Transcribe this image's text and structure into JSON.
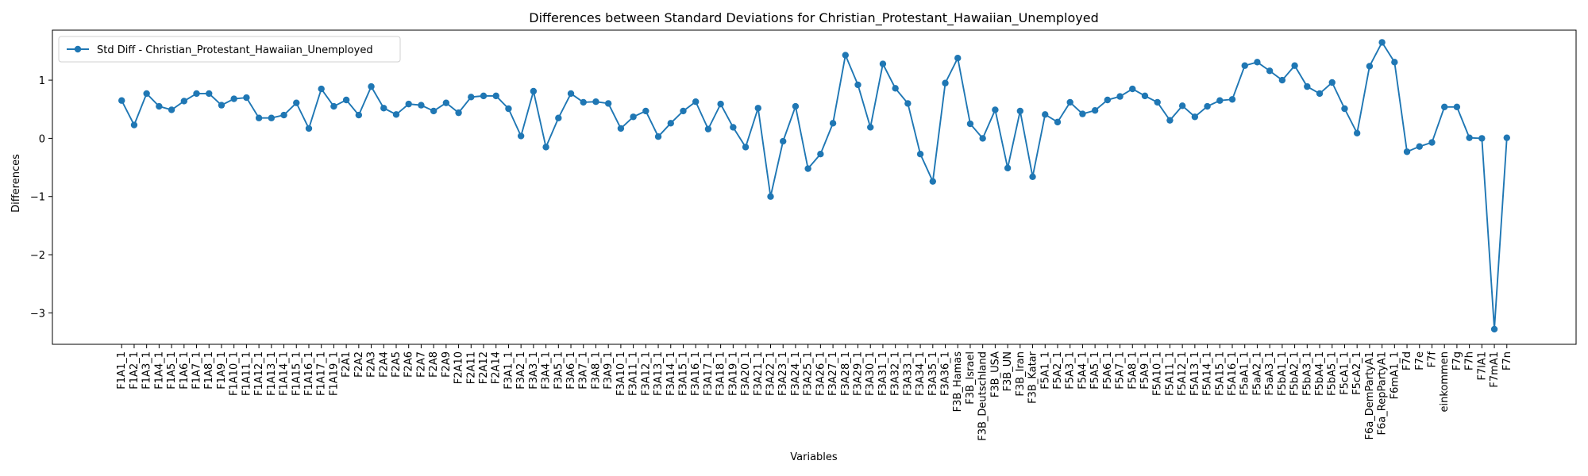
{
  "chart_data": {
    "type": "line",
    "title": "Differences between Standard Deviations for Christian_Protestant_Hawaiian_Unemployed",
    "x_label": "Variables",
    "y_label": "Differences",
    "categories": [
      "F1A1_1",
      "F1A2_1",
      "F1A3_1",
      "F1A4_1",
      "F1A5_1",
      "F1A6_1",
      "F1A7_1",
      "F1A8_1",
      "F1A9_1",
      "F1A10_1",
      "F1A11_1",
      "F1A12_1",
      "F1A13_1",
      "F1A14_1",
      "F1A15_1",
      "F1A16_1",
      "F1A17_1",
      "F1A19_1",
      "F2A1",
      "F2A2",
      "F2A3",
      "F2A4",
      "F2A5",
      "F2A6",
      "F2A7",
      "F2A8",
      "F2A9",
      "F2A10",
      "F2A11",
      "F2A12",
      "F2A14",
      "F3A1_1",
      "F3A2_1",
      "F3A3_1",
      "F3A4_1",
      "F3A5_1",
      "F3A6_1",
      "F3A7_1",
      "F3A8_1",
      "F3A9_1",
      "F3A10_1",
      "F3A11_1",
      "F3A12_1",
      "F3A13_1",
      "F3A14_1",
      "F3A15_1",
      "F3A16_1",
      "F3A17_1",
      "F3A18_1",
      "F3A19_1",
      "F3A20_1",
      "F3A21_1",
      "F3A22_1",
      "F3A23_1",
      "F3A24_1",
      "F3A25_1",
      "F3A26_1",
      "F3A27_1",
      "F3A28_1",
      "F3A29_1",
      "F3A30_1",
      "F3A31_1",
      "F3A32_1",
      "F3A33_1",
      "F3A34_1",
      "F3A35_1",
      "F3A36_1",
      "F3B_Hamas",
      "F3B_Israel",
      "F3B_Deutschland",
      "F3B_USA",
      "F3B_UN",
      "F3B_Iran",
      "F3B_Katar",
      "F5A1_1",
      "F5A2_1",
      "F5A3_1",
      "F5A4_1",
      "F5A5_1",
      "F5A6_1",
      "F5A7_1",
      "F5A8_1",
      "F5A9_1",
      "F5A10_1",
      "F5A11_1",
      "F5A12_1",
      "F5A13_1",
      "F5A14_1",
      "F5A15_1",
      "F5A16_1",
      "F5aA1_1",
      "F5aA2_1",
      "F5aA3_1",
      "F5bA1_1",
      "F5bA2_1",
      "F5bA3_1",
      "F5bA4_1",
      "F5bA5_1",
      "F5cA1_1",
      "F5cA2_1",
      "F6a_DemPartyA1",
      "F6a_RepPartyA1",
      "F6mA1_1",
      "F7d",
      "F7e",
      "F7f",
      "einkommen",
      "F7g",
      "F7h",
      "F7lA1",
      "F7mA1",
      "F7n"
    ],
    "series": [
      {
        "name": "Std Diff - Christian_Protestant_Hawaiian_Unemployed",
        "color": "#1f77b4",
        "values": [
          0.65,
          0.23,
          0.77,
          0.55,
          0.49,
          0.64,
          0.77,
          0.77,
          0.57,
          0.68,
          0.7,
          0.35,
          0.35,
          0.4,
          0.61,
          0.17,
          0.85,
          0.55,
          0.66,
          0.4,
          0.89,
          0.52,
          0.41,
          0.59,
          0.57,
          0.47,
          0.61,
          0.44,
          0.71,
          0.73,
          0.73,
          0.51,
          0.04,
          0.81,
          -0.15,
          0.35,
          0.77,
          0.62,
          0.63,
          0.6,
          0.17,
          0.37,
          0.47,
          0.03,
          0.26,
          0.47,
          0.63,
          0.16,
          0.59,
          0.19,
          -0.15,
          0.52,
          -1.0,
          -0.05,
          0.55,
          -0.52,
          -0.27,
          0.26,
          1.43,
          0.92,
          0.19,
          1.28,
          0.86,
          0.6,
          -0.27,
          -0.74,
          0.95,
          1.38,
          0.25,
          0.0,
          0.49,
          -0.51,
          0.47,
          -0.66,
          0.41,
          0.28,
          0.62,
          0.42,
          0.48,
          0.66,
          0.72,
          0.85,
          0.73,
          0.62,
          0.31,
          0.56,
          0.37,
          0.55,
          0.65,
          0.67,
          1.25,
          1.31,
          1.16,
          1.0,
          1.25,
          0.89,
          0.77,
          0.96,
          0.51,
          0.09,
          1.24,
          1.65,
          1.31,
          -0.23,
          -0.14,
          -0.07,
          0.54,
          0.54,
          0.01,
          0.0,
          -3.28,
          0.01
        ]
      }
    ],
    "ylim": [
      -3.54,
      1.86
    ],
    "yticks": [
      {
        "value": -3,
        "label": "−3"
      },
      {
        "value": -2,
        "label": "−2"
      },
      {
        "value": -1,
        "label": "−1"
      },
      0,
      1
    ],
    "legend": "upper left",
    "grid": false
  }
}
